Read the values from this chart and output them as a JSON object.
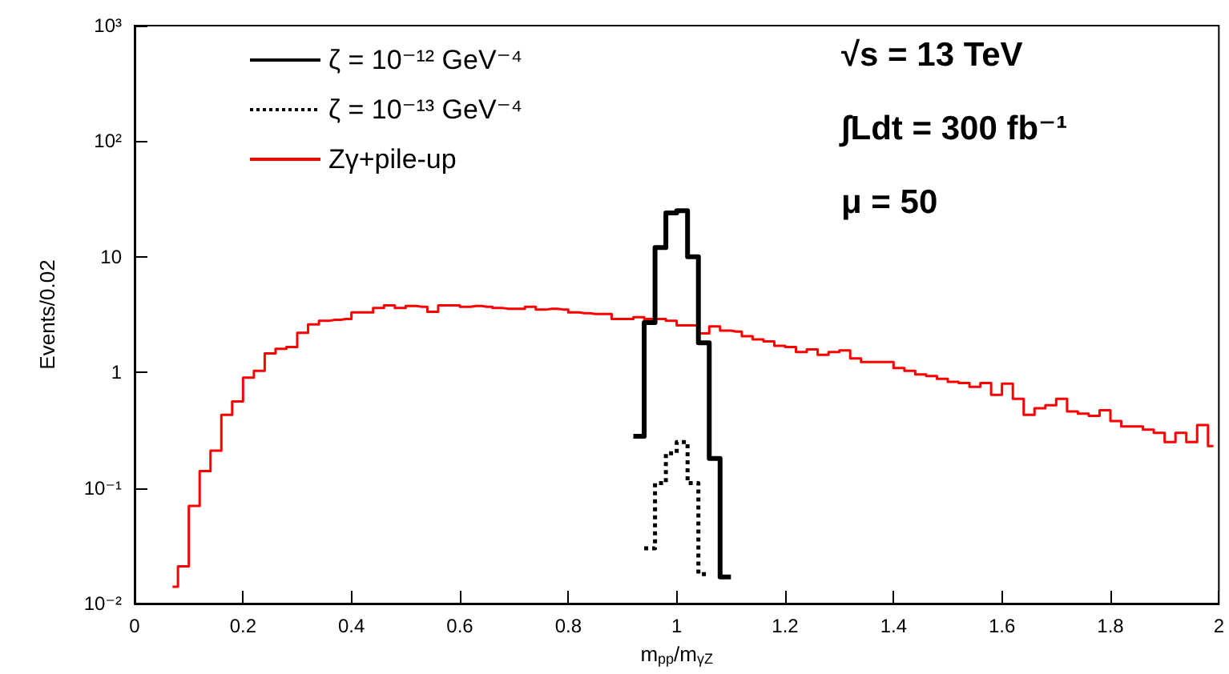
{
  "chart_data": {
    "type": "step",
    "xlabel": "m$_{pp}$/m$_{γZ}$",
    "ylabel": "Events/0.02",
    "x": [
      0.07,
      0.09,
      0.11,
      0.13,
      0.15,
      0.17,
      0.19,
      0.21,
      0.23,
      0.25,
      0.27,
      0.29,
      0.31,
      0.33,
      0.35,
      0.37,
      0.39,
      0.41,
      0.43,
      0.45,
      0.47,
      0.49,
      0.51,
      0.53,
      0.55,
      0.57,
      0.59,
      0.61,
      0.63,
      0.65,
      0.67,
      0.69,
      0.71,
      0.73,
      0.75,
      0.77,
      0.79,
      0.81,
      0.83,
      0.85,
      0.87,
      0.89,
      0.91,
      0.93,
      0.95,
      0.97,
      0.99,
      1.01,
      1.03,
      1.05,
      1.07,
      1.09,
      1.11,
      1.13,
      1.15,
      1.17,
      1.19,
      1.21,
      1.23,
      1.25,
      1.27,
      1.29,
      1.31,
      1.33,
      1.35,
      1.37,
      1.39,
      1.41,
      1.43,
      1.45,
      1.47,
      1.49,
      1.51,
      1.53,
      1.55,
      1.57,
      1.59,
      1.61,
      1.63,
      1.65,
      1.67,
      1.69,
      1.71,
      1.73,
      1.75,
      1.77,
      1.79,
      1.81,
      1.83,
      1.85,
      1.87,
      1.89,
      1.91,
      1.93,
      1.95,
      1.97,
      1.99
    ],
    "series": [
      {
        "name": "ζ = 10⁻¹² GeV⁻⁴",
        "color": "#000000",
        "line_style": "solid",
        "values": [
          null,
          null,
          null,
          null,
          null,
          null,
          null,
          null,
          null,
          null,
          null,
          null,
          null,
          null,
          null,
          null,
          null,
          null,
          null,
          null,
          null,
          null,
          null,
          null,
          null,
          null,
          null,
          null,
          null,
          null,
          null,
          null,
          null,
          null,
          null,
          null,
          null,
          null,
          null,
          null,
          null,
          null,
          null,
          0.28,
          2.7,
          12,
          24,
          25,
          10,
          1.8,
          0.18,
          0.017,
          null,
          null,
          null,
          null,
          null,
          null,
          null,
          null,
          null,
          null,
          null,
          null,
          null,
          null,
          null,
          null,
          null,
          null,
          null,
          null,
          null,
          null,
          null,
          null,
          null,
          null,
          null,
          null,
          null,
          null,
          null,
          null,
          null,
          null,
          null,
          null,
          null,
          null,
          null,
          null,
          null,
          null,
          null,
          null,
          null
        ]
      },
      {
        "name": "ζ = 10⁻¹³ GeV⁻⁴",
        "color": "#000000",
        "line_style": "dotted",
        "values": [
          null,
          null,
          null,
          null,
          null,
          null,
          null,
          null,
          null,
          null,
          null,
          null,
          null,
          null,
          null,
          null,
          null,
          null,
          null,
          null,
          null,
          null,
          null,
          null,
          null,
          null,
          null,
          null,
          null,
          null,
          null,
          null,
          null,
          null,
          null,
          null,
          null,
          null,
          null,
          null,
          null,
          null,
          null,
          null,
          0.03,
          0.11,
          0.2,
          0.25,
          0.11,
          0.018,
          null,
          null,
          null,
          null,
          null,
          null,
          null,
          null,
          null,
          null,
          null,
          null,
          null,
          null,
          null,
          null,
          null,
          null,
          null,
          null,
          null,
          null,
          null,
          null,
          null,
          null,
          null,
          null,
          null,
          null,
          null,
          null,
          null,
          null,
          null,
          null,
          null,
          null,
          null,
          null,
          null,
          null,
          null,
          null,
          null,
          null,
          null
        ]
      },
      {
        "name": "Zγ+pile-up",
        "color": "#ff0000",
        "line_style": "solid",
        "values": [
          0.014,
          0.021,
          0.07,
          0.14,
          0.21,
          0.43,
          0.56,
          0.9,
          1.03,
          1.46,
          1.6,
          1.66,
          2.2,
          2.6,
          2.8,
          2.85,
          2.9,
          3.3,
          3.3,
          3.6,
          3.8,
          3.6,
          3.75,
          3.7,
          3.35,
          3.8,
          3.8,
          3.7,
          3.75,
          3.7,
          3.6,
          3.55,
          3.55,
          3.7,
          3.5,
          3.55,
          3.5,
          3.3,
          3.25,
          3.2,
          3.2,
          2.9,
          2.9,
          3.0,
          2.9,
          2.9,
          2.8,
          2.55,
          2.55,
          2.17,
          2.5,
          2.3,
          2.25,
          2.06,
          1.93,
          1.85,
          1.7,
          1.66,
          1.5,
          1.58,
          1.42,
          1.5,
          1.55,
          1.32,
          1.23,
          1.23,
          1.23,
          1.09,
          1.03,
          0.96,
          0.93,
          0.88,
          0.83,
          0.81,
          0.75,
          0.81,
          0.64,
          0.8,
          0.59,
          0.43,
          0.49,
          0.52,
          0.59,
          0.46,
          0.44,
          0.42,
          0.47,
          0.38,
          0.34,
          0.34,
          0.32,
          0.3,
          0.25,
          0.3,
          0.25,
          0.35,
          0.23
        ]
      }
    ],
    "xlim": [
      0,
      2
    ],
    "xticks": [
      0,
      0.2,
      0.4,
      0.6,
      0.8,
      1,
      1.2,
      1.4,
      1.6,
      1.8,
      2
    ],
    "ylim": [
      0.01,
      1000
    ],
    "log": "y",
    "yticks": [
      {
        "value": 0.01,
        "label": "10⁻²"
      },
      {
        "value": 0.1,
        "label": "10⁻¹"
      },
      1,
      10,
      {
        "value": 100,
        "label": "10²"
      },
      {
        "value": 1000,
        "label": "10³"
      }
    ],
    "grid": false,
    "marker": "none",
    "legend": "top left",
    "annotations": [
      "√s = 13 TeV",
      "∫Ldt = 300 fb⁻¹",
      "μ = 50"
    ]
  }
}
